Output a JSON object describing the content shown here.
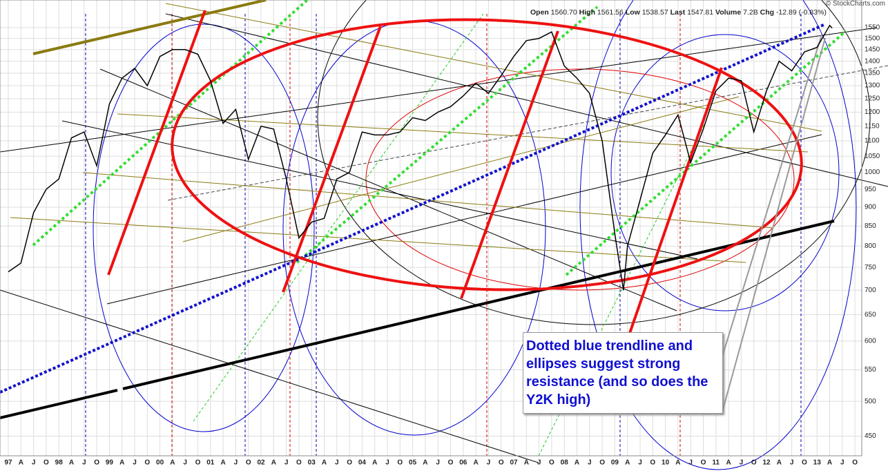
{
  "chart_data": {
    "type": "line",
    "color": "#000000",
    "log_scale": true,
    "grid": true,
    "copyright": "© StockCharts.com",
    "quote": [
      {
        "label": "Open",
        "value": "1560.70"
      },
      {
        "label": "High",
        "value": "1561.56"
      },
      {
        "label": "Low",
        "value": "1538.57"
      },
      {
        "label": "Last",
        "value": "1547.81"
      },
      {
        "label": "Volume",
        "value": "7.2B"
      },
      {
        "label": "Chg",
        "value": "-12.89 (-0.83%)"
      }
    ],
    "annotation": "Dotted blue trendline and ellipses suggest strong resistance (and so does the Y2K high)",
    "xlim": [
      1996.836,
      2013.885
    ],
    "ylim": [
      424,
      1685
    ],
    "yticks": [
      450,
      500,
      550,
      600,
      650,
      700,
      750,
      800,
      850,
      900,
      950,
      1000,
      1050,
      1100,
      1150,
      1200,
      1250,
      1300,
      1350,
      1400,
      1450,
      1500,
      1550
    ],
    "xticks": [
      {
        "value": 1997,
        "label": "97"
      },
      {
        "value": 1997.25,
        "label": "A"
      },
      {
        "value": 1997.5,
        "label": "J"
      },
      {
        "value": 1997.75,
        "label": "O"
      },
      {
        "value": 1998,
        "label": "98"
      },
      {
        "value": 1998.25,
        "label": "A"
      },
      {
        "value": 1998.5,
        "label": "J"
      },
      {
        "value": 1998.75,
        "label": "O"
      },
      {
        "value": 1999,
        "label": "99"
      },
      {
        "value": 1999.25,
        "label": "A"
      },
      {
        "value": 1999.5,
        "label": "J"
      },
      {
        "value": 1999.75,
        "label": "O"
      },
      {
        "value": 2000,
        "label": "00"
      },
      {
        "value": 2000.25,
        "label": "A"
      },
      {
        "value": 2000.5,
        "label": "J"
      },
      {
        "value": 2000.75,
        "label": "O"
      },
      {
        "value": 2001,
        "label": "01"
      },
      {
        "value": 2001.25,
        "label": "A"
      },
      {
        "value": 2001.5,
        "label": "J"
      },
      {
        "value": 2001.75,
        "label": "O"
      },
      {
        "value": 2002,
        "label": "02"
      },
      {
        "value": 2002.25,
        "label": "A"
      },
      {
        "value": 2002.5,
        "label": "J"
      },
      {
        "value": 2002.75,
        "label": "O"
      },
      {
        "value": 2003,
        "label": "03"
      },
      {
        "value": 2003.25,
        "label": "A"
      },
      {
        "value": 2003.5,
        "label": "J"
      },
      {
        "value": 2003.75,
        "label": "O"
      },
      {
        "value": 2004,
        "label": "04"
      },
      {
        "value": 2004.25,
        "label": "A"
      },
      {
        "value": 2004.5,
        "label": "J"
      },
      {
        "value": 2004.75,
        "label": "O"
      },
      {
        "value": 2005,
        "label": "05"
      },
      {
        "value": 2005.25,
        "label": "A"
      },
      {
        "value": 2005.5,
        "label": "J"
      },
      {
        "value": 2005.75,
        "label": "O"
      },
      {
        "value": 2006,
        "label": "06"
      },
      {
        "value": 2006.25,
        "label": "A"
      },
      {
        "value": 2006.5,
        "label": "J"
      },
      {
        "value": 2006.75,
        "label": "O"
      },
      {
        "value": 2007,
        "label": "07"
      },
      {
        "value": 2007.25,
        "label": "A"
      },
      {
        "value": 2007.5,
        "label": "J"
      },
      {
        "value": 2007.75,
        "label": "O"
      },
      {
        "value": 2008,
        "label": "08"
      },
      {
        "value": 2008.25,
        "label": "A"
      },
      {
        "value": 2008.5,
        "label": "J"
      },
      {
        "value": 2008.75,
        "label": "O"
      },
      {
        "value": 2009,
        "label": "09"
      },
      {
        "value": 2009.25,
        "label": "A"
      },
      {
        "value": 2009.5,
        "label": "J"
      },
      {
        "value": 2009.75,
        "label": "O"
      },
      {
        "value": 2010,
        "label": "10"
      },
      {
        "value": 2010.25,
        "label": "A"
      },
      {
        "value": 2010.5,
        "label": "J"
      },
      {
        "value": 2010.75,
        "label": "O"
      },
      {
        "value": 2011,
        "label": "11"
      },
      {
        "value": 2011.25,
        "label": "A"
      },
      {
        "value": 2011.5,
        "label": "J"
      },
      {
        "value": 2011.75,
        "label": "O"
      },
      {
        "value": 2012,
        "label": "12"
      },
      {
        "value": 2012.25,
        "label": "A"
      },
      {
        "value": 2012.5,
        "label": "J"
      },
      {
        "value": 2012.75,
        "label": "O"
      },
      {
        "value": 2013,
        "label": "13"
      },
      {
        "value": 2013.25,
        "label": "A"
      },
      {
        "value": 2013.5,
        "label": "J"
      },
      {
        "value": 2013.75,
        "label": "O"
      }
    ],
    "x": [
      1997,
      1997.25,
      1997.5,
      1997.75,
      1998,
      1998.25,
      1998.5,
      1998.75,
      1999,
      1999.25,
      1999.5,
      1999.75,
      2000,
      2000.25,
      2000.5,
      2000.75,
      2001,
      2001.25,
      2001.5,
      2001.75,
      2002,
      2002.25,
      2002.5,
      2002.75,
      2003,
      2003.25,
      2003.5,
      2003.75,
      2004,
      2004.25,
      2004.5,
      2004.75,
      2005,
      2005.25,
      2005.5,
      2005.75,
      2006,
      2006.25,
      2006.5,
      2006.75,
      2007,
      2007.25,
      2007.5,
      2007.75,
      2008,
      2008.25,
      2008.5,
      2008.75,
      2009,
      2009.17,
      2009.25,
      2009.5,
      2009.75,
      2010,
      2010.25,
      2010.5,
      2010.75,
      2011,
      2011.25,
      2011.5,
      2011.75,
      2012,
      2012.25,
      2012.5,
      2012.75,
      2013,
      2013.25,
      2013.3
    ],
    "values": [
      740,
      760,
      885,
      950,
      980,
      1110,
      1130,
      1020,
      1230,
      1330,
      1370,
      1300,
      1420,
      1450,
      1450,
      1430,
      1320,
      1160,
      1210,
      1040,
      1150,
      1140,
      980,
      820,
      860,
      870,
      980,
      1000,
      1130,
      1120,
      1120,
      1130,
      1180,
      1170,
      1200,
      1220,
      1260,
      1310,
      1270,
      1340,
      1420,
      1490,
      1500,
      1530,
      1380,
      1330,
      1270,
      1100,
      830,
      700,
      800,
      920,
      1060,
      1120,
      1190,
      1030,
      1140,
      1280,
      1330,
      1320,
      1130,
      1280,
      1400,
      1360,
      1440,
      1460,
      1560,
      1548
    ]
  }
}
